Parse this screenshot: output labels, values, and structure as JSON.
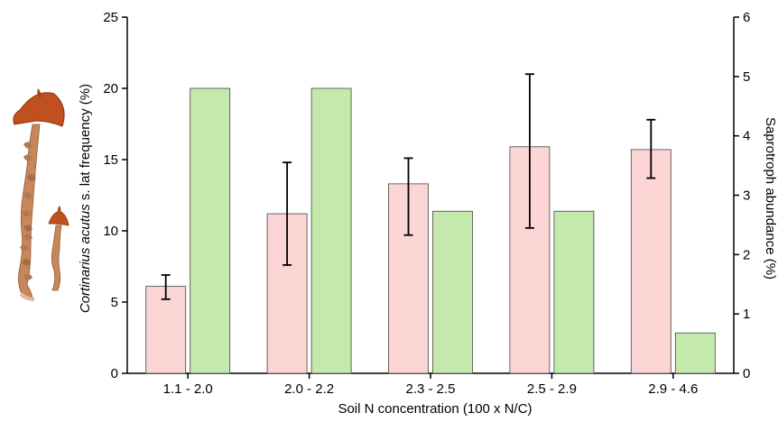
{
  "chart_data": {
    "type": "bar",
    "categories": [
      "1.1 - 2.0",
      "2.0 - 2.2",
      "2.3 - 2.5",
      "2.5 - 2.9",
      "2.9 - 4.6"
    ],
    "xlabel": "Soil N concentration (100 x N/C)",
    "ylabel_left": {
      "italic": "Cortinarius acutus",
      "rest": " s. lat frequency (%)"
    },
    "ylabel_right": "Saprotroph abundance (%)",
    "ylim_left": [
      0,
      25
    ],
    "ylim_right": [
      0,
      6
    ],
    "yticks_left": [
      0,
      5,
      10,
      15,
      20,
      25
    ],
    "yticks_right": [
      0,
      1,
      2,
      3,
      4,
      5,
      6
    ],
    "grid": false,
    "series": [
      {
        "axis": "left",
        "values": [
          6.1,
          11.2,
          13.3,
          15.9,
          15.7
        ],
        "error_low": [
          5.2,
          7.6,
          9.7,
          10.2,
          13.7
        ],
        "error_high": [
          6.9,
          14.8,
          15.1,
          21.0,
          17.8
        ],
        "color": "#fcd5d5"
      },
      {
        "axis": "right",
        "values": [
          4.8,
          4.8,
          2.73,
          2.73,
          0.68
        ],
        "color": "#c5e8ad"
      }
    ]
  },
  "illustration": {
    "subject": "mushroom-illustration",
    "cap_color": "#c0501e",
    "stem_color": "#c8875a"
  }
}
